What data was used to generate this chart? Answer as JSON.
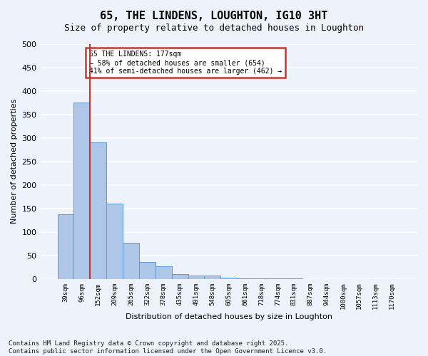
{
  "title": "65, THE LINDENS, LOUGHTON, IG10 3HT",
  "subtitle": "Size of property relative to detached houses in Loughton",
  "xlabel": "Distribution of detached houses by size in Loughton",
  "ylabel": "Number of detached properties",
  "bin_labels": [
    "39sqm",
    "96sqm",
    "152sqm",
    "209sqm",
    "265sqm",
    "322sqm",
    "378sqm",
    "435sqm",
    "491sqm",
    "548sqm",
    "605sqm",
    "661sqm",
    "718sqm",
    "774sqm",
    "831sqm",
    "887sqm",
    "944sqm",
    "1000sqm",
    "1057sqm",
    "1113sqm",
    "1170sqm"
  ],
  "bar_heights": [
    138,
    375,
    290,
    160,
    77,
    36,
    27,
    11,
    7,
    7,
    3,
    1,
    1,
    1,
    1,
    0,
    0,
    0,
    0,
    0,
    0
  ],
  "bar_color": "#aec6e8",
  "bar_edge_color": "#5b9bd5",
  "vline_color": "#c0392b",
  "vline_pos": 1.5,
  "annotation_text": "65 THE LINDENS: 177sqm\n← 58% of detached houses are smaller (654)\n41% of semi-detached houses are larger (462) →",
  "annotation_box_edgecolor": "#c0392b",
  "ylim": [
    0,
    500
  ],
  "yticks": [
    0,
    50,
    100,
    150,
    200,
    250,
    300,
    350,
    400,
    450,
    500
  ],
  "footnote": "Contains HM Land Registry data © Crown copyright and database right 2025.\nContains public sector information licensed under the Open Government Licence v3.0.",
  "bg_color": "#eef2fb",
  "grid_color": "#ffffff",
  "title_fontsize": 11,
  "subtitle_fontsize": 9,
  "footnote_fontsize": 6.5,
  "ylabel_fontsize": 8,
  "xlabel_fontsize": 8
}
